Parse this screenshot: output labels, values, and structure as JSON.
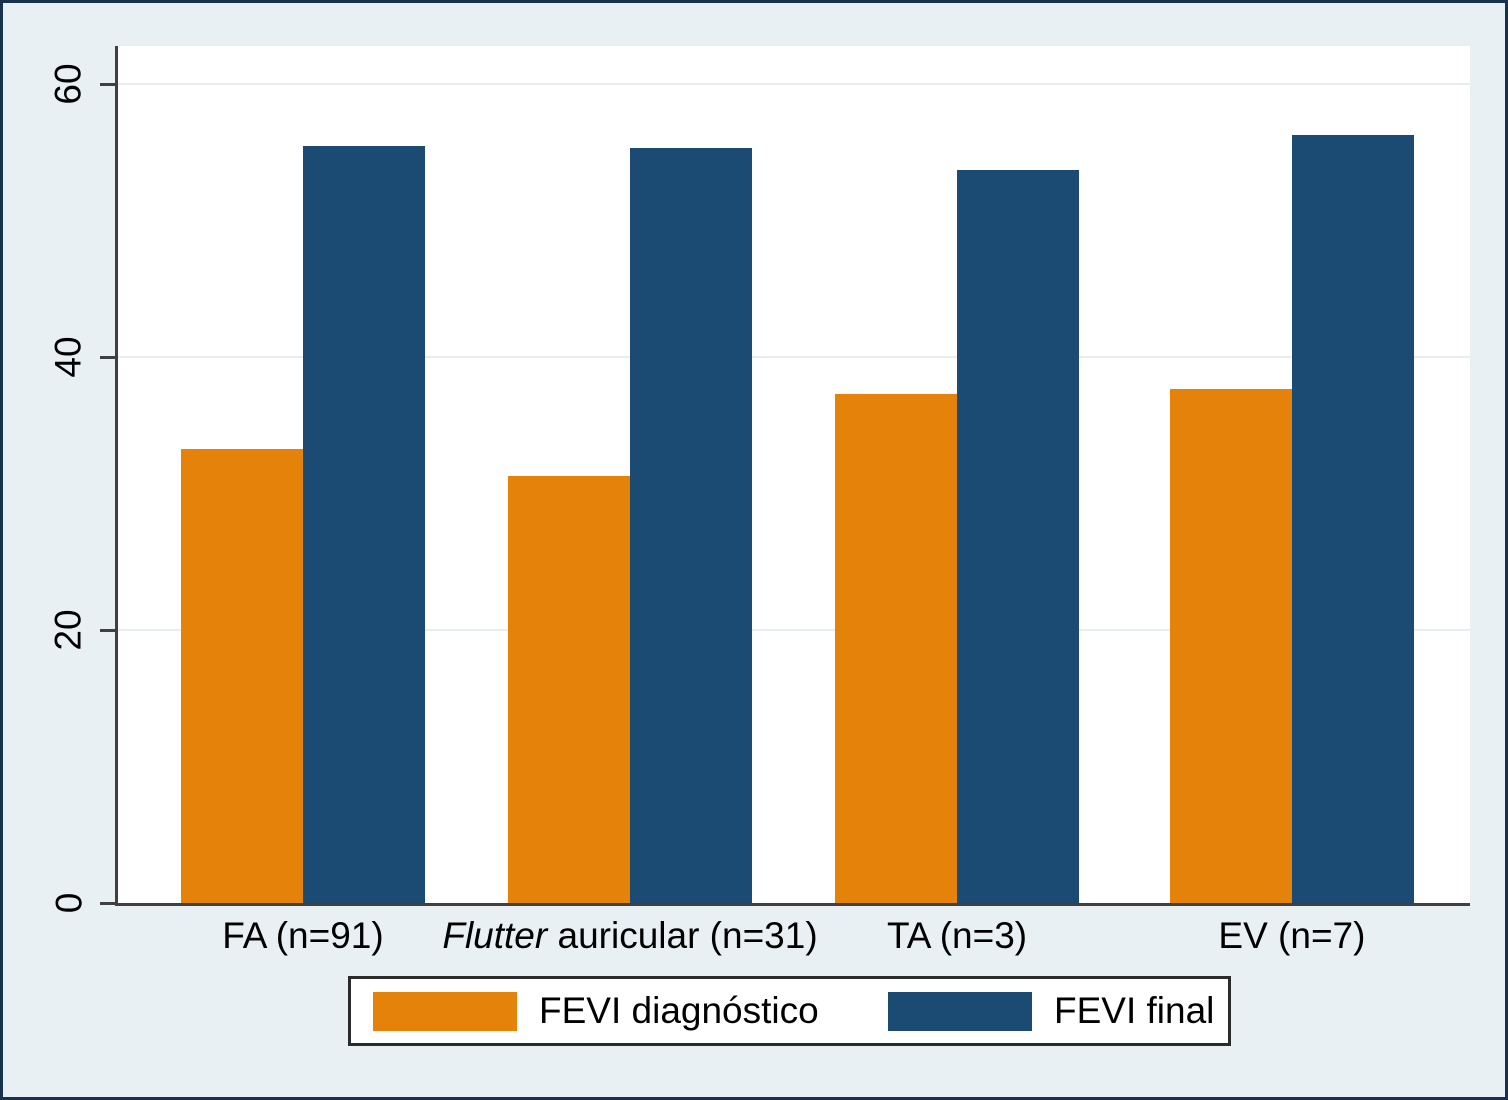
{
  "chart_data": {
    "type": "bar",
    "title": "",
    "xlabel": "",
    "ylabel": "",
    "categories": [
      {
        "italic_part": "",
        "text": "FA (n=91)"
      },
      {
        "italic_part": "Flutter",
        "text": " auricular (n=31)"
      },
      {
        "italic_part": "",
        "text": "TA (n=3)"
      },
      {
        "italic_part": "",
        "text": "EV (n=7)"
      }
    ],
    "series": [
      {
        "name": "FEVI diagnóstico",
        "color": "#e5820a",
        "values": [
          33.3,
          31.3,
          37.3,
          37.7
        ]
      },
      {
        "name": "FEVI final",
        "color": "#1b4a72",
        "values": [
          55.5,
          55.3,
          53.7,
          56.3
        ]
      }
    ],
    "yticks": [
      0,
      20,
      40,
      60
    ],
    "ylim": [
      0,
      62.8
    ],
    "grid": true,
    "legend_position": "bottom"
  },
  "colors": {
    "background": "#e9f0f3",
    "plot_background": "#ffffff",
    "gridline": "#e9edf0",
    "axis": "#3f3f3f",
    "figure_border": "#16324f",
    "legend_border": "#2b2b2b"
  }
}
